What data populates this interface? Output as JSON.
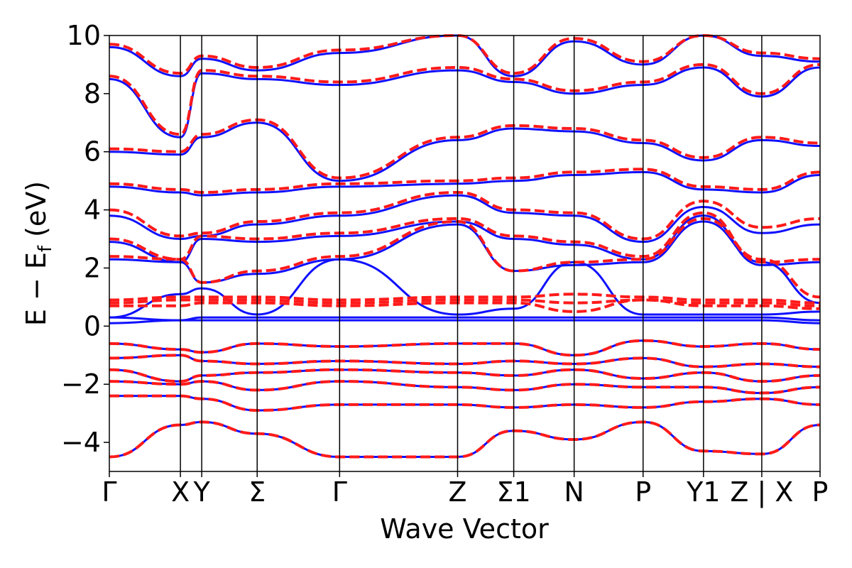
{
  "chart_data": {
    "type": "line",
    "title": "",
    "xlabel": "Wave Vector",
    "ylabel_main": "E − E",
    "ylabel_sub": "f",
    "ylabel_unit": " (eV)",
    "ylim": [
      -5,
      10
    ],
    "xlim": [
      0,
      1
    ],
    "yticks": [
      "10",
      "8",
      "6",
      "4",
      "2",
      "0",
      "−2",
      "−4"
    ],
    "ytick_values": [
      10,
      8,
      6,
      4,
      2,
      0,
      -2,
      -4
    ],
    "kpoints": [
      {
        "label": "Γ",
        "x": 0.0
      },
      {
        "label": "X",
        "x": 0.1
      },
      {
        "label": "Y",
        "x": 0.13
      },
      {
        "label": "Σ",
        "x": 0.208
      },
      {
        "label": "Γ",
        "x": 0.324
      },
      {
        "label": "Z",
        "x": 0.49
      },
      {
        "label": "Σ1",
        "x": 0.569
      },
      {
        "label": "N",
        "x": 0.654
      },
      {
        "label": "P",
        "x": 0.751
      },
      {
        "label": "Y1",
        "x": 0.836
      },
      {
        "label": "Z | X",
        "x": 0.918
      },
      {
        "label": "P",
        "x": 1.0
      }
    ],
    "grid": false,
    "colors": {
      "series_a": "#1010ff",
      "series_b": "#ff1a1a"
    },
    "series": [
      {
        "style": "solid",
        "color": "#1010ff",
        "bands": [
          [
            -4.5,
            -3.4,
            -3.3,
            -3.7,
            -4.5,
            -4.5,
            -3.6,
            -3.9,
            -3.3,
            -4.3,
            -4.4,
            -3.4
          ],
          [
            -2.4,
            -2.4,
            -2.5,
            -2.9,
            -2.7,
            -2.7,
            -2.8,
            -2.7,
            -2.8,
            -2.6,
            -2.5,
            -2.7
          ],
          [
            -1.9,
            -2.0,
            -1.9,
            -2.2,
            -1.9,
            -2.1,
            -2.2,
            -2.0,
            -2.1,
            -2.1,
            -2.3,
            -2.1
          ],
          [
            -1.5,
            -1.9,
            -1.7,
            -1.6,
            -1.5,
            -1.6,
            -1.7,
            -1.5,
            -1.8,
            -1.6,
            -1.9,
            -1.7
          ],
          [
            -1.1,
            -1.0,
            -1.2,
            -1.3,
            -1.2,
            -1.3,
            -1.2,
            -1.3,
            -1.1,
            -1.4,
            -1.3,
            -1.4
          ],
          [
            -0.6,
            -0.8,
            -0.9,
            -0.6,
            -0.7,
            -0.6,
            -0.6,
            -1.0,
            -0.5,
            -0.7,
            -0.6,
            -0.8
          ],
          [
            0.1,
            0.2,
            0.2,
            0.2,
            0.2,
            0.2,
            0.2,
            0.2,
            0.2,
            0.2,
            0.2,
            0.1
          ],
          [
            0.3,
            0.2,
            0.3,
            0.3,
            0.3,
            0.3,
            0.3,
            0.3,
            0.3,
            0.3,
            0.3,
            0.2
          ],
          [
            0.3,
            1.1,
            1.3,
            0.4,
            2.3,
            0.4,
            0.6,
            2.2,
            0.4,
            0.4,
            0.4,
            0.5
          ],
          [
            2.3,
            2.2,
            1.5,
            1.8,
            2.3,
            3.5,
            1.9,
            2.1,
            2.2,
            3.6,
            2.2,
            0.8
          ],
          [
            2.9,
            2.2,
            3.0,
            2.9,
            3.1,
            3.6,
            3.0,
            2.8,
            2.3,
            3.8,
            2.1,
            2.2
          ],
          [
            3.8,
            3.0,
            3.1,
            3.5,
            3.8,
            4.5,
            3.9,
            3.8,
            2.9,
            4.1,
            3.2,
            3.5
          ],
          [
            4.8,
            4.6,
            4.5,
            4.6,
            4.8,
            4.9,
            5.0,
            5.2,
            5.3,
            4.7,
            4.6,
            5.2
          ],
          [
            6.0,
            5.9,
            6.5,
            7.0,
            5.0,
            6.4,
            6.8,
            6.7,
            6.3,
            5.7,
            6.4,
            6.2
          ],
          [
            8.5,
            6.5,
            8.7,
            8.5,
            8.3,
            8.8,
            8.4,
            8.0,
            8.3,
            8.9,
            7.9,
            8.9
          ],
          [
            9.6,
            8.6,
            9.2,
            8.8,
            9.4,
            10.0,
            8.6,
            9.8,
            9.0,
            10.0,
            9.3,
            9.1
          ]
        ]
      },
      {
        "style": "dashed",
        "color": "#ff1a1a",
        "bands": [
          [
            -4.5,
            -3.4,
            -3.3,
            -3.7,
            -4.5,
            -4.5,
            -3.6,
            -3.9,
            -3.3,
            -4.3,
            -4.4,
            -3.4
          ],
          [
            -2.4,
            -2.4,
            -2.5,
            -2.9,
            -2.7,
            -2.7,
            -2.8,
            -2.7,
            -2.8,
            -2.6,
            -2.5,
            -2.7
          ],
          [
            -1.9,
            -2.0,
            -1.9,
            -2.2,
            -1.9,
            -2.1,
            -2.2,
            -2.0,
            -2.1,
            -2.1,
            -2.3,
            -2.1
          ],
          [
            -1.5,
            -1.9,
            -1.7,
            -1.6,
            -1.5,
            -1.6,
            -1.7,
            -1.5,
            -1.8,
            -1.6,
            -1.9,
            -1.7
          ],
          [
            -1.1,
            -1.0,
            -1.2,
            -1.3,
            -1.2,
            -1.3,
            -1.2,
            -1.3,
            -1.1,
            -1.4,
            -1.3,
            -1.4
          ],
          [
            -0.6,
            -0.8,
            -0.9,
            -0.6,
            -0.7,
            -0.6,
            -0.6,
            -1.0,
            -0.5,
            -0.7,
            -0.6,
            -0.8
          ],
          [
            0.7,
            0.7,
            0.8,
            0.8,
            0.7,
            0.8,
            0.8,
            0.5,
            0.9,
            0.7,
            0.7,
            0.6
          ],
          [
            0.8,
            0.9,
            0.9,
            0.9,
            0.8,
            0.9,
            0.9,
            0.8,
            0.9,
            0.8,
            0.8,
            0.7
          ],
          [
            0.9,
            1.0,
            1.0,
            1.0,
            0.9,
            1.0,
            1.0,
            1.1,
            1.0,
            0.9,
            0.9,
            0.8
          ],
          [
            2.4,
            2.3,
            1.5,
            1.9,
            2.4,
            3.6,
            1.9,
            2.2,
            2.3,
            3.7,
            2.3,
            1.0
          ],
          [
            3.0,
            2.3,
            3.1,
            3.0,
            3.2,
            3.7,
            3.1,
            2.9,
            2.4,
            3.9,
            2.2,
            2.3
          ],
          [
            4.0,
            3.1,
            3.2,
            3.6,
            3.9,
            4.6,
            4.0,
            3.9,
            3.0,
            4.3,
            3.4,
            3.7
          ],
          [
            4.9,
            4.7,
            4.6,
            4.7,
            4.9,
            5.0,
            5.1,
            5.3,
            5.4,
            4.8,
            4.7,
            5.3
          ],
          [
            6.1,
            6.0,
            6.6,
            7.1,
            5.1,
            6.5,
            6.9,
            6.8,
            6.4,
            5.8,
            6.5,
            6.3
          ],
          [
            8.6,
            6.6,
            8.8,
            8.6,
            8.4,
            8.9,
            8.5,
            8.1,
            8.4,
            9.0,
            8.0,
            9.0
          ],
          [
            9.7,
            8.7,
            9.3,
            8.9,
            9.5,
            10.0,
            8.7,
            9.9,
            9.1,
            10.0,
            9.4,
            9.2
          ]
        ]
      }
    ]
  }
}
